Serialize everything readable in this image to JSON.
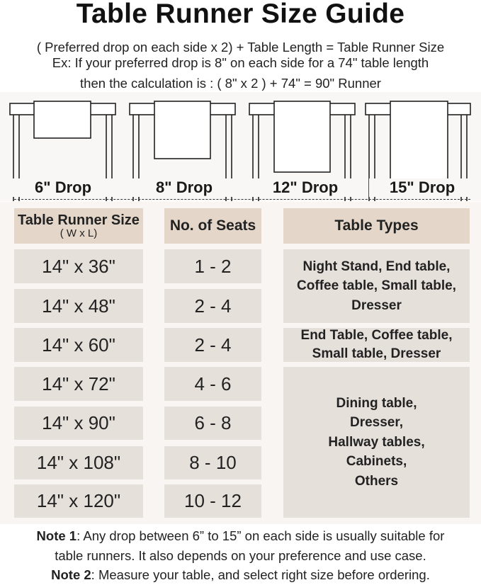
{
  "title": "Table Runner Size Guide",
  "formula": "( Preferred drop on each side x 2) + Table Length = Table Runner Size",
  "example_line1": "Ex: If your preferred drop is 8\" on each side for a 74\" table length",
  "example_line2": "then the calculation is : ( 8\" x 2 ) + 74\" = 90\" Runner",
  "drops": [
    {
      "label": "6\" Drop"
    },
    {
      "label": "8\" Drop"
    },
    {
      "label": "12\" Drop"
    },
    {
      "label": "15\" Drop"
    }
  ],
  "headers": {
    "size": "Table Runner Size",
    "size_sub": "( W x L)",
    "seats": "No. of Seats",
    "types": "Table Types"
  },
  "rows": [
    {
      "size": "14\" x 36\"",
      "seats": "1 - 2"
    },
    {
      "size": "14\" x 48\"",
      "seats": "2 - 4"
    },
    {
      "size": "14\" x 60\"",
      "seats": "2 - 4"
    },
    {
      "size": "14\" x 72\"",
      "seats": "4 - 6"
    },
    {
      "size": "14\" x 90\"",
      "seats": "6 - 8"
    },
    {
      "size": "14\" x 108\"",
      "seats": "8 - 10"
    },
    {
      "size": "14\" x 120\"",
      "seats": "10 - 12"
    }
  ],
  "types": [
    "Night Stand, End table, Coffee table, Small table, Dresser",
    "End Table, Coffee table, Small table, Dresser",
    "Dining table, Dresser, Hallway tables, Cabinets, Others"
  ],
  "notes": {
    "n1_label": "Note 1",
    "n1_text": ": Any drop between 6” to 15” on each side is usually suitable for",
    "n1_text2": "table runners. It also depends on your preference and use case.",
    "n2_label": "Note 2",
    "n2_text": ": Measure your table, and select right size before ordering."
  },
  "colors": {
    "header_cell": "#e4d7c9",
    "body_cell": "#e6e0db",
    "background": "#f8f5f2"
  }
}
